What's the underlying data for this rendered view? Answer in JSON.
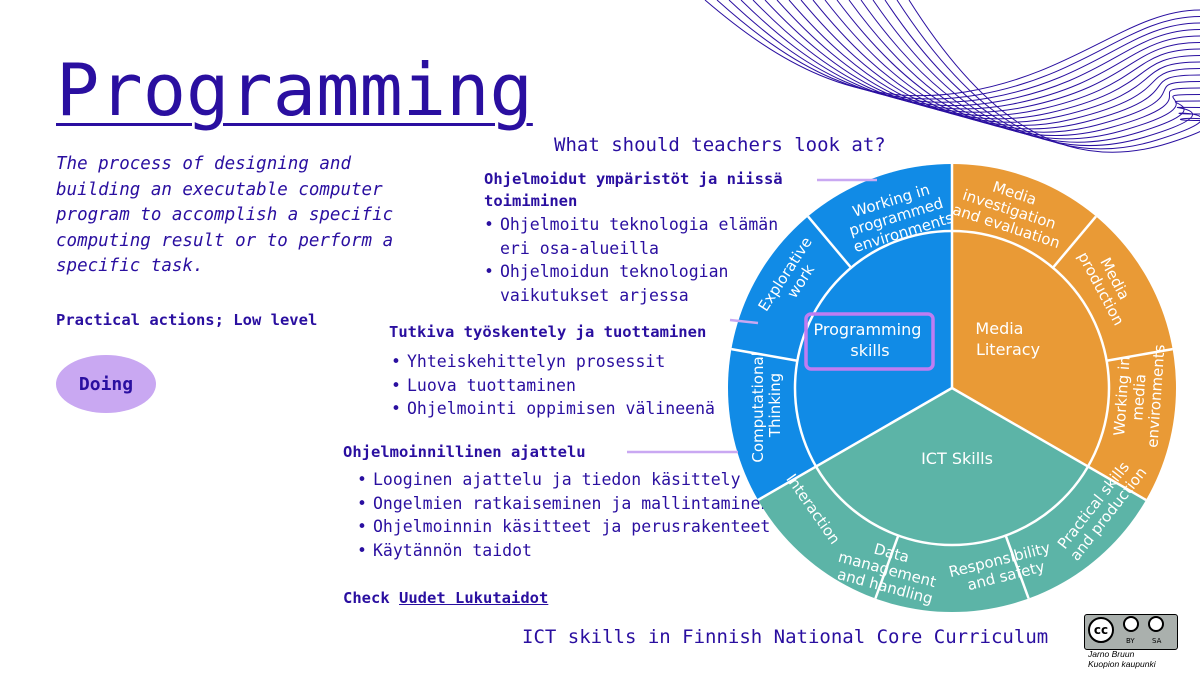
{
  "title": "Programming",
  "description": "The process of designing and building an executable computer program to accomplish a specific computing result or to perform a specific task.",
  "practical_actions": "Practical actions; Low level",
  "doing_label": "Doing",
  "question": "What should teachers look at?",
  "sections": [
    {
      "title": "Ohjelmoidut ympäristöt ja niissä toimiminen",
      "items": [
        "Ohjelmoitu teknologia elämän eri osa-alueilla",
        "Ohjelmoidun teknologian vaikutukset arjessa"
      ]
    },
    {
      "title": "Tutkiva työskentely ja tuottaminen",
      "items": [
        "Yhteiskehittelyn prosessit",
        "Luova tuottaminen",
        "Ohjelmointi oppimisen välineenä"
      ]
    },
    {
      "title": "Ohjelmoinnillinen ajattelu",
      "items": [
        "Looginen ajattelu ja tiedon käsittely",
        "Ongelmien ratkaiseminen ja mallintaminen",
        "Ohjelmoinnin käsitteet ja perusrakenteet",
        "Käytännön taidot"
      ]
    }
  ],
  "check_label": "Check",
  "check_link": "Uudet Lukutaidot",
  "footer": "ICT skills in Finnish National Core Curriculum",
  "license": {
    "cc": "cc",
    "by": "BY",
    "sa": "SA"
  },
  "author": [
    "Jarno Bruun",
    "Kuopion kaupunki"
  ],
  "wheel": {
    "inner": {
      "programming": [
        "Programming",
        "skills"
      ],
      "media": [
        "Media",
        "Literacy"
      ],
      "ict": "ICT Skills"
    },
    "outer": {
      "working_programmed": [
        "Working in",
        "programmed",
        "environments"
      ],
      "explorative": [
        "Explorative",
        "work"
      ],
      "computational": [
        "Computational",
        "Thinking"
      ],
      "media_investigation": [
        "Media",
        "investigation",
        "and evaluation"
      ],
      "media_production": [
        "Media",
        "production"
      ],
      "working_media": [
        "Working in",
        "media",
        "environments"
      ],
      "interaction": "Interaction",
      "data_management": [
        "Data",
        "management",
        "and handling"
      ],
      "responsibility": [
        "Responsibility",
        "and safety"
      ],
      "practical_skills": [
        "Practical skills",
        "and production"
      ]
    }
  },
  "colors": {
    "text": "#2a0fa0",
    "blue": "#118be6",
    "orange": "#e99a36",
    "teal": "#5cb4a7",
    "lavender": "#c9a8f2",
    "highlight_box": "#c07cf2"
  }
}
